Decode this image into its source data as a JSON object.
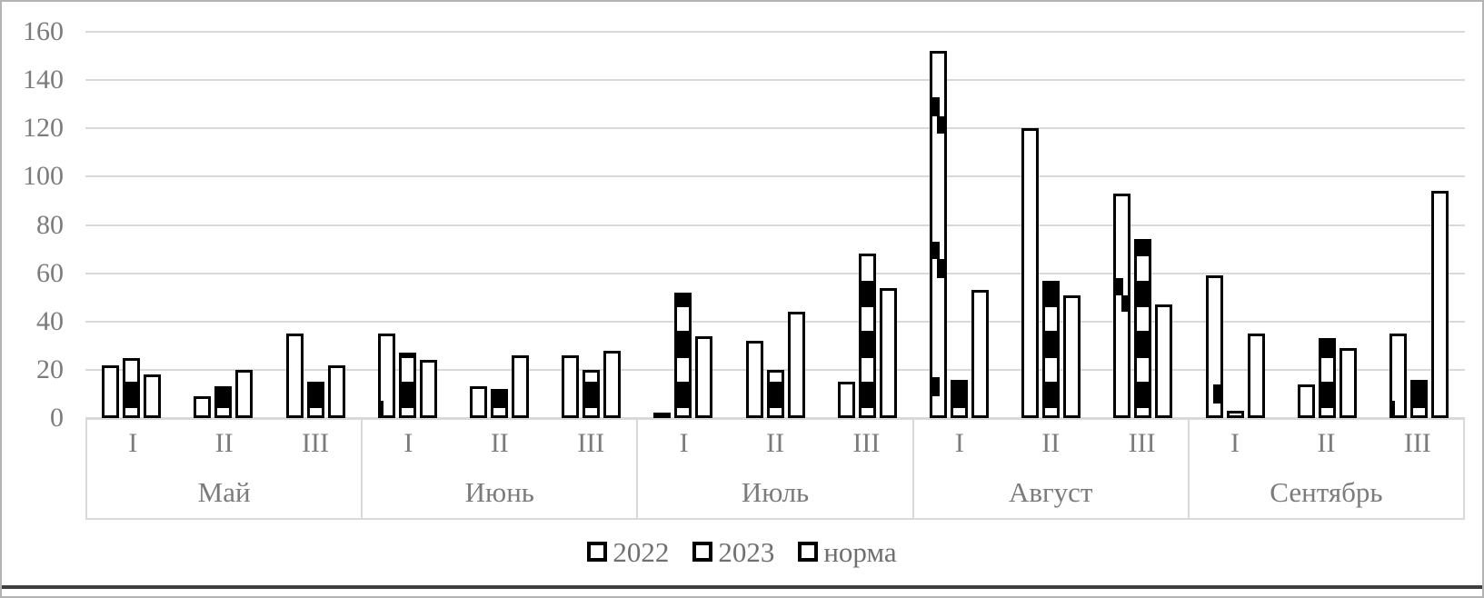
{
  "colors": {
    "grid": "#d9d9d9",
    "axis_box_border": "#d9d9d9",
    "text": "#7b7b7b",
    "bar_border": "#000000",
    "bar_fill": "#ffffff",
    "pattern_black": "#000000"
  },
  "chart_data": {
    "type": "bar",
    "title": "",
    "xlabel": "",
    "ylabel": "",
    "ylim": [
      0,
      160
    ],
    "ytick_step": 20,
    "ytick_labels": [
      "0",
      "20",
      "40",
      "60",
      "80",
      "100",
      "120",
      "140",
      "160"
    ],
    "grid": true,
    "legend_position": "bottom",
    "month_groups": [
      {
        "month": "Май",
        "decades": [
          "I",
          "II",
          "III"
        ]
      },
      {
        "month": "Июнь",
        "decades": [
          "I",
          "II",
          "III"
        ]
      },
      {
        "month": "Июль",
        "decades": [
          "I",
          "II",
          "III"
        ]
      },
      {
        "month": "Август",
        "decades": [
          "I",
          "II",
          "III"
        ]
      },
      {
        "month": "Сентябрь",
        "decades": [
          "I",
          "II",
          "III"
        ]
      }
    ],
    "series": [
      {
        "name": "2022",
        "fill": "white-with-sparse-black-squares",
        "values": [
          22,
          9,
          35,
          35,
          13,
          26,
          2,
          32,
          15,
          152,
          120,
          93,
          59,
          14,
          35
        ],
        "square_marks": {
          "3": [
            [
              0,
              6,
              "Lthin"
            ]
          ],
          "9": [
            [
              125,
              133,
              "L"
            ],
            [
              118,
              125,
              "R"
            ],
            [
              66,
              73,
              "L"
            ],
            [
              58,
              66,
              "R"
            ],
            [
              9,
              17,
              "L"
            ]
          ],
          "11": [
            [
              51,
              58,
              "L"
            ],
            [
              44,
              51,
              "R"
            ]
          ],
          "12": [
            [
              6,
              14,
              "R"
            ]
          ],
          "14": [
            [
              0,
              6,
              "Lthin"
            ]
          ]
        }
      },
      {
        "name": "2023",
        "fill": "black-white-banded",
        "values": [
          25,
          13,
          15,
          27,
          12,
          20,
          52,
          20,
          68,
          16,
          57,
          74,
          3,
          33,
          16
        ],
        "band_pattern": {
          "offset": 4,
          "black": 11,
          "white": 10
        }
      },
      {
        "name": "норма",
        "fill": "white",
        "values": [
          18,
          20,
          22,
          24,
          26,
          28,
          34,
          44,
          54,
          53,
          51,
          47,
          35,
          29,
          94
        ]
      }
    ],
    "legend": [
      "2022",
      "2023",
      "норма"
    ]
  }
}
